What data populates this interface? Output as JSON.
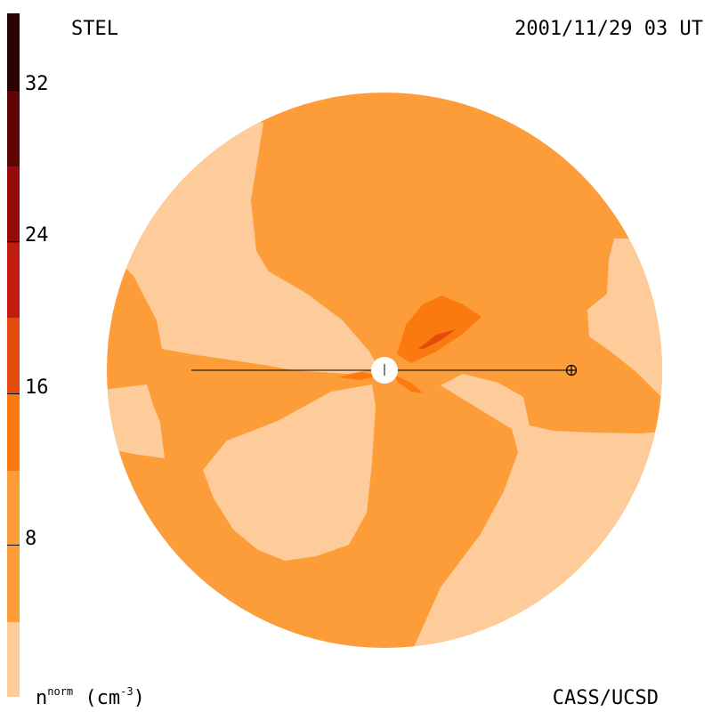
{
  "header": {
    "left_label": "STEL",
    "date_label": "2001/11/29 03 UT"
  },
  "footer": {
    "unit_base": "n",
    "unit_sup": "norm",
    "unit_rest": "(cm",
    "unit_exp": "-3",
    "unit_close": ")",
    "credit": "CASS/UCSD"
  },
  "colorbar": {
    "ticks": [
      {
        "value": 32,
        "label": "32"
      },
      {
        "value": 24,
        "label": "24"
      },
      {
        "value": 16,
        "label": "16"
      },
      {
        "value": 8,
        "label": "8"
      }
    ],
    "range": [
      0,
      36
    ],
    "levels": [
      {
        "from": 0,
        "to": 4,
        "color": "#fdcc9a"
      },
      {
        "from": 4,
        "to": 12,
        "color": "#fc9d3a"
      },
      {
        "from": 12,
        "to": 20,
        "color": "#fb7a10"
      },
      {
        "from": 20,
        "to": 28,
        "color": "#e34c0c"
      },
      {
        "from": 28,
        "to": 36,
        "color": "#c21b10"
      }
    ],
    "segment_colors": [
      "#fdcc9a",
      "#fc9d3a",
      "#fb7a10",
      "#e34c0c",
      "#c21b10",
      "#950a0a",
      "#5e0606",
      "#2a0303"
    ]
  },
  "map": {
    "background_color": "#fc9d3a",
    "light_color": "#fdcc9a",
    "mid_color": "#fb7a10",
    "dark_color": "#e34c0c"
  }
}
